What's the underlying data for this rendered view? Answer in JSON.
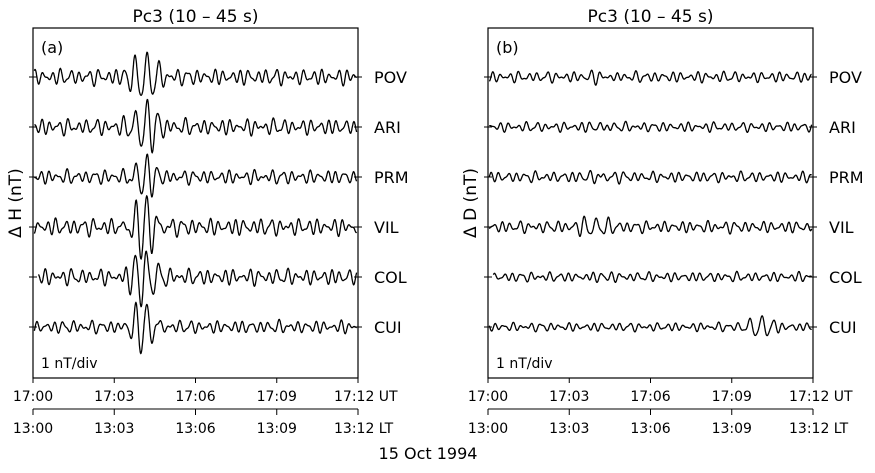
{
  "chart_data": {
    "type": "line",
    "date_label": "15 Oct 1994",
    "ut_ticks": [
      "17:00",
      "17:03",
      "17:06",
      "17:09",
      "17:12 UT"
    ],
    "lt_ticks": [
      "13:00",
      "13:03",
      "13:06",
      "13:09",
      "13:12 LT"
    ],
    "xlim_minutes": [
      0,
      12
    ],
    "scale_label": "1 nT/div",
    "stations": [
      "POV",
      "ARI",
      "PRM",
      "VIL",
      "COL",
      "CUI"
    ],
    "panels": [
      {
        "title": "Pc3 (10 – 45 s)",
        "label": "(a)",
        "ylabel": "Δ H (nT)",
        "series": [
          {
            "name": "POV",
            "background_nT": 0.15,
            "burst_nT": 0.5,
            "burst_center_min": 4.1,
            "start_min": 0
          },
          {
            "name": "ARI",
            "background_nT": 0.15,
            "burst_nT": 0.5,
            "burst_center_min": 4.1,
            "start_min": 0
          },
          {
            "name": "PRM",
            "background_nT": 0.13,
            "burst_nT": 0.4,
            "burst_center_min": 4.1,
            "start_min": 0
          },
          {
            "name": "VIL",
            "background_nT": 0.16,
            "burst_nT": 0.6,
            "burst_center_min": 4.1,
            "start_min": 0
          },
          {
            "name": "COL",
            "background_nT": 0.15,
            "burst_nT": 0.55,
            "burst_center_min": 4.1,
            "start_min": 0.2
          },
          {
            "name": "CUI",
            "background_nT": 0.12,
            "burst_nT": 0.5,
            "burst_center_min": 4.1,
            "start_min": 0
          }
        ]
      },
      {
        "title": "Pc3 (10 – 45 s)",
        "label": "(b)",
        "ylabel": "Δ D (nT)",
        "series": [
          {
            "name": "POV",
            "background_nT": 0.1,
            "burst_nT": 0.08,
            "burst_center_min": 4.1,
            "start_min": 0
          },
          {
            "name": "ARI",
            "background_nT": 0.09,
            "burst_nT": 0.05,
            "burst_center_min": 4.1,
            "start_min": 0
          },
          {
            "name": "PRM",
            "background_nT": 0.1,
            "burst_nT": 0.1,
            "burst_center_min": 4.1,
            "start_min": 0
          },
          {
            "name": "VIL",
            "background_nT": 0.11,
            "burst_nT": 0.2,
            "burst_center_min": 3.9,
            "start_min": 0
          },
          {
            "name": "COL",
            "background_nT": 0.09,
            "burst_nT": 0.05,
            "burst_center_min": 4.1,
            "start_min": 0.2
          },
          {
            "name": "CUI",
            "background_nT": 0.08,
            "burst_nT": 0.25,
            "burst_center_min": 10.0,
            "start_min": 0
          }
        ]
      }
    ]
  }
}
